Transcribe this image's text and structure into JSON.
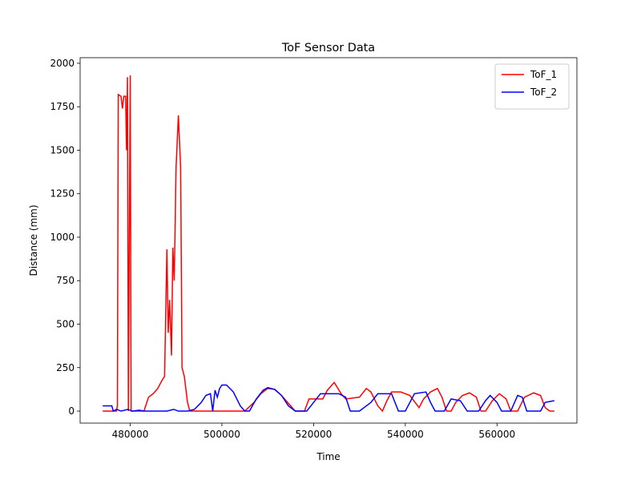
{
  "chart_data": {
    "type": "line",
    "title": "ToF Sensor Data",
    "x_label": "Time",
    "y_label": "Distance (mm)",
    "xlim": [
      469075,
      577425
    ],
    "ylim": [
      -69,
      2032
    ],
    "xticks": [
      480000,
      500000,
      520000,
      540000,
      560000
    ],
    "yticks": [
      0,
      250,
      500,
      750,
      1000,
      1250,
      1500,
      1750,
      2000
    ],
    "legend": "upper right",
    "series": [
      {
        "name": "ToF_1",
        "color": "#ff0000",
        "x": [
          474000,
          477000,
          477200,
          477400,
          478000,
          478300,
          478600,
          479000,
          479200,
          479400,
          479600,
          480000,
          480200,
          481000,
          483000,
          484000,
          485000,
          486000,
          487000,
          487500,
          488000,
          488300,
          488600,
          489000,
          489300,
          489600,
          490000,
          490500,
          491000,
          491300,
          491800,
          492500,
          493000,
          500000,
          505000,
          507000,
          508500,
          510000,
          511500,
          513000,
          515000,
          516000,
          518000,
          519000,
          522000,
          523000,
          524500,
          526000,
          527000,
          530000,
          531500,
          532500,
          534000,
          535000,
          536000,
          537000,
          539000,
          541000,
          543000,
          544000,
          545500,
          547000,
          548000,
          549000,
          550000,
          551000,
          552500,
          554000,
          555500,
          556500,
          557500,
          559000,
          560500,
          562000,
          563000,
          564500,
          566000,
          568000,
          569500,
          570500,
          571500,
          572500
        ],
        "values": [
          0,
          0,
          30,
          1820,
          1810,
          1740,
          1810,
          1810,
          1500,
          1920,
          0,
          1930,
          0,
          0,
          0,
          80,
          100,
          130,
          180,
          200,
          930,
          450,
          640,
          320,
          940,
          750,
          1400,
          1700,
          1400,
          250,
          200,
          50,
          0,
          0,
          0,
          50,
          100,
          130,
          125,
          90,
          30,
          0,
          0,
          70,
          70,
          120,
          165,
          100,
          70,
          80,
          130,
          110,
          30,
          0,
          60,
          110,
          110,
          90,
          20,
          70,
          110,
          130,
          80,
          0,
          0,
          50,
          90,
          105,
          80,
          0,
          0,
          60,
          100,
          70,
          0,
          0,
          80,
          105,
          90,
          20,
          0,
          0
        ]
      },
      {
        "name": "ToF_2",
        "color": "#0000ff",
        "x": [
          474000,
          476000,
          476300,
          477000,
          478000,
          479500,
          480500,
          482000,
          483000,
          488000,
          489500,
          490500,
          492500,
          494000,
          495500,
          496500,
          497500,
          498000,
          498500,
          499000,
          499500,
          500000,
          501000,
          502500,
          504000,
          505000,
          506000,
          507500,
          509000,
          510000,
          511500,
          513000,
          514500,
          516000,
          518500,
          520000,
          521500,
          524000,
          525500,
          527000,
          528000,
          530000,
          532500,
          534000,
          537000,
          538500,
          540000,
          542000,
          544500,
          545500,
          546500,
          548500,
          550000,
          552000,
          553500,
          556000,
          557500,
          558500,
          560000,
          561000,
          563000,
          564500,
          565500,
          566500,
          569500,
          570500,
          572500
        ],
        "values": [
          30,
          30,
          0,
          10,
          0,
          10,
          0,
          5,
          0,
          0,
          10,
          0,
          0,
          10,
          50,
          90,
          100,
          0,
          120,
          80,
          130,
          150,
          150,
          110,
          30,
          0,
          0,
          70,
          120,
          135,
          125,
          90,
          30,
          0,
          0,
          50,
          100,
          100,
          100,
          80,
          0,
          0,
          50,
          100,
          100,
          0,
          0,
          100,
          110,
          50,
          0,
          0,
          70,
          60,
          0,
          0,
          60,
          90,
          50,
          0,
          0,
          90,
          80,
          0,
          0,
          50,
          60
        ]
      }
    ]
  }
}
